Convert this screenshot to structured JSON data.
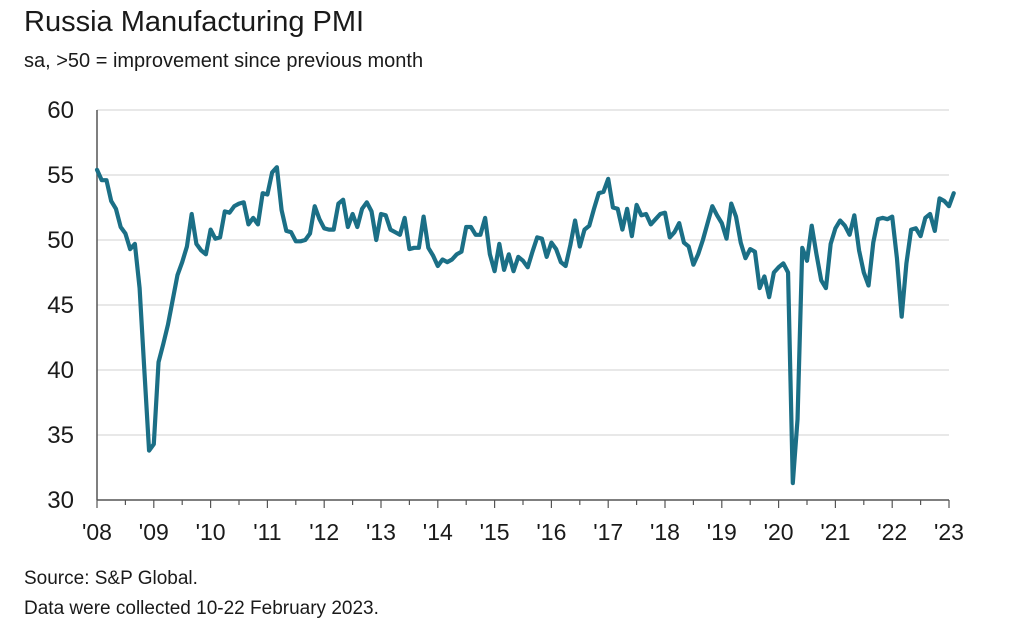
{
  "title": "Russia Manufacturing PMI",
  "subtitle": "sa, >50 = improvement since previous month",
  "footer": {
    "source": "Source: S&P Global.",
    "note": "Data were collected 10-22 February 2023."
  },
  "colors": {
    "line": "#1b6f86",
    "grid": "#d9d9d9",
    "axis": "#555555"
  },
  "chart_data": {
    "type": "line",
    "title": "Russia Manufacturing PMI",
    "xlabel": "",
    "ylabel": "",
    "ylim": [
      30,
      60
    ],
    "yticks": [
      30,
      35,
      40,
      45,
      50,
      55,
      60
    ],
    "xticks": [
      "'08",
      "'09",
      "'10",
      "'11",
      "'12",
      "'13",
      "'14",
      "'15",
      "'16",
      "'17",
      "'18",
      "'19",
      "'20",
      "'21",
      "'22",
      "'23"
    ],
    "x_start": "2008-01",
    "x_frequency": "monthly",
    "grid": true,
    "series": [
      {
        "name": "Russia Manufacturing PMI",
        "values": [
          55.4,
          54.6,
          54.6,
          53.0,
          52.4,
          51.0,
          50.5,
          49.3,
          49.7,
          46.3,
          40.0,
          33.8,
          34.3,
          40.6,
          42.0,
          43.5,
          45.4,
          47.3,
          48.3,
          49.5,
          52.0,
          49.7,
          49.2,
          48.9,
          50.8,
          50.1,
          50.2,
          52.2,
          52.1,
          52.6,
          52.8,
          52.9,
          51.2,
          51.7,
          51.2,
          53.6,
          53.5,
          55.2,
          55.6,
          52.3,
          50.7,
          50.6,
          49.9,
          49.9,
          50.0,
          50.5,
          52.6,
          51.6,
          50.9,
          50.8,
          50.8,
          52.8,
          53.1,
          51.0,
          52.0,
          51.0,
          52.4,
          52.9,
          52.2,
          50.0,
          52.0,
          51.9,
          50.8,
          50.6,
          50.4,
          51.7,
          49.3,
          49.4,
          49.4,
          51.8,
          49.4,
          48.8,
          48.0,
          48.5,
          48.3,
          48.5,
          48.9,
          49.1,
          51.0,
          51.0,
          50.4,
          50.4,
          51.7,
          48.9,
          47.6,
          49.7,
          47.7,
          48.9,
          47.6,
          48.7,
          48.4,
          47.9,
          49.1,
          50.2,
          50.1,
          48.7,
          49.8,
          49.3,
          48.3,
          48.0,
          49.6,
          51.5,
          49.5,
          50.8,
          51.1,
          52.4,
          53.6,
          53.7,
          54.7,
          52.5,
          52.4,
          50.8,
          52.4,
          50.3,
          52.7,
          51.9,
          52.0,
          51.2,
          51.6,
          52.0,
          52.1,
          50.2,
          50.6,
          51.3,
          49.8,
          49.5,
          48.1,
          48.9,
          50.0,
          51.3,
          52.6,
          51.9,
          51.3,
          50.1,
          52.8,
          51.8,
          49.8,
          48.6,
          49.3,
          49.1,
          46.3,
          47.2,
          45.6,
          47.5,
          47.9,
          48.2,
          47.5,
          31.3,
          36.2,
          49.4,
          48.4,
          51.1,
          48.9,
          46.9,
          46.3,
          49.7,
          50.9,
          51.5,
          51.1,
          50.4,
          51.9,
          49.2,
          47.5,
          46.5,
          49.8,
          51.6,
          51.7,
          51.6,
          51.8,
          48.6,
          44.1,
          48.2,
          50.8,
          50.9,
          50.3,
          51.7,
          52.0,
          50.7,
          53.2,
          53.0,
          52.6,
          53.6
        ]
      }
    ]
  }
}
